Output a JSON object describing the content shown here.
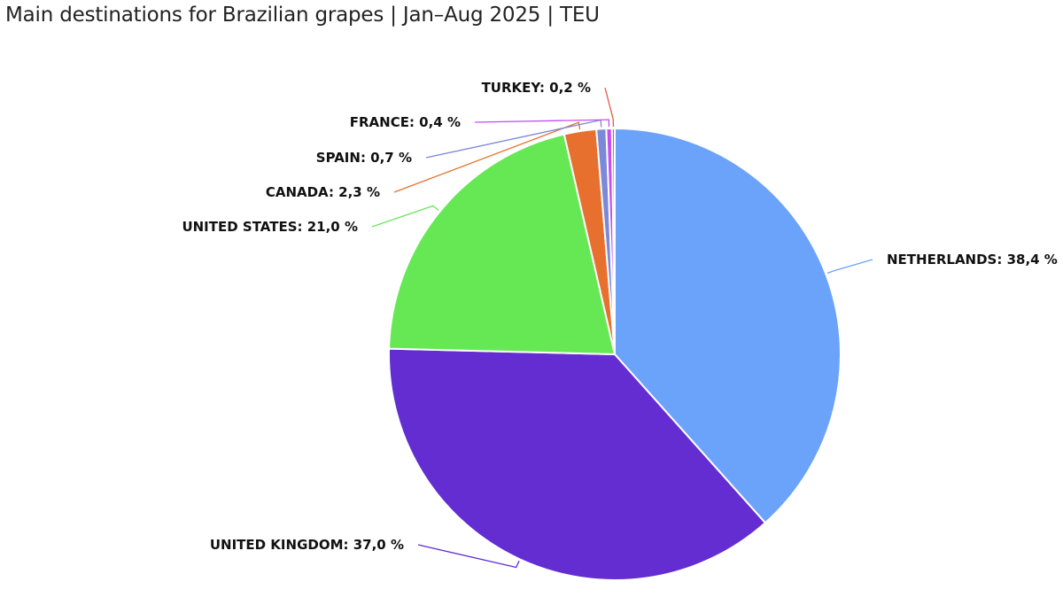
{
  "chart_data": {
    "type": "pie",
    "title": "Main destinations for Brazilian grapes | Jan–Aug 2025 | TEU",
    "slices": [
      {
        "name": "NETHERLANDS",
        "value": 38.4,
        "label": "NETHERLANDS: 38,4 %",
        "color": "#6ba3fa"
      },
      {
        "name": "UNITED KINGDOM",
        "value": 37.0,
        "label": "UNITED KINGDOM: 37,0 %",
        "color": "#632dd1"
      },
      {
        "name": "UNITED STATES",
        "value": 21.0,
        "label": "UNITED STATES: 21,0 %",
        "color": "#66e855"
      },
      {
        "name": "CANADA",
        "value": 2.3,
        "label": "CANADA: 2,3 %",
        "color": "#e8702e"
      },
      {
        "name": "SPAIN",
        "value": 0.7,
        "label": "SPAIN: 0,7 %",
        "color": "#7b89d6"
      },
      {
        "name": "FRANCE",
        "value": 0.4,
        "label": "FRANCE: 0,4 %",
        "color": "#c44ff0"
      },
      {
        "name": "TURKEY",
        "value": 0.2,
        "label": "TURKEY: 0,2 %",
        "color": "#e55a47"
      }
    ]
  }
}
